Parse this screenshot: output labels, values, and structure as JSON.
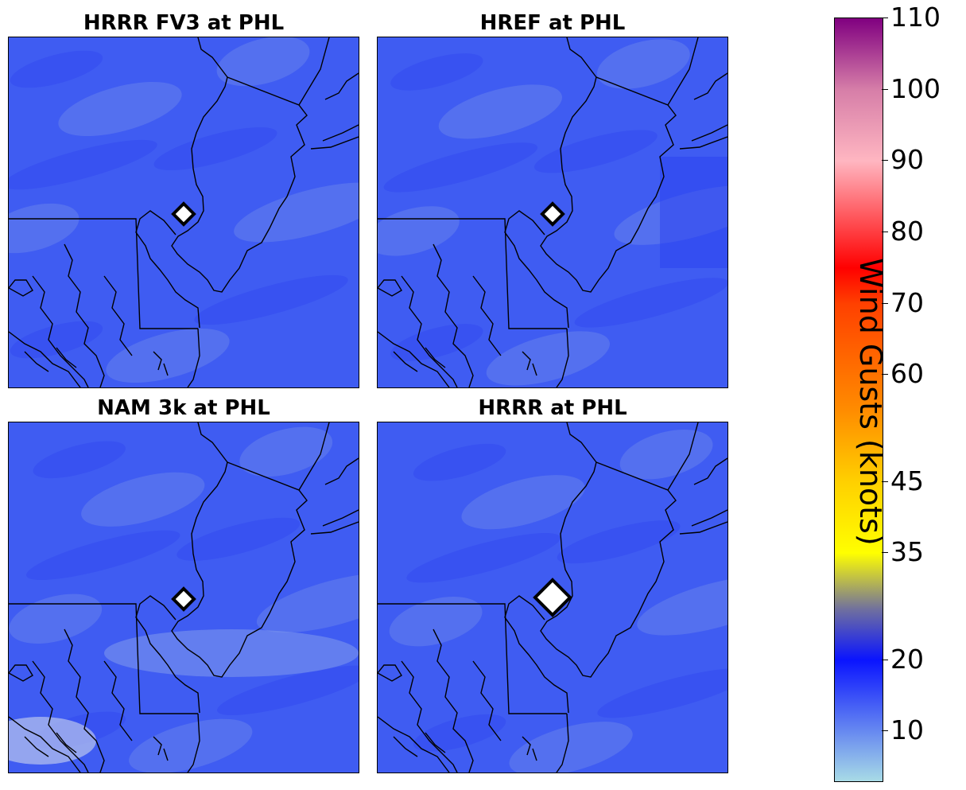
{
  "panels": [
    {
      "title": "HRRR FV3 at PHL",
      "marker": "small"
    },
    {
      "title": "HREF at PHL",
      "marker": "small"
    },
    {
      "title": "NAM 3k at PHL",
      "marker": "small"
    },
    {
      "title": "HRRR at PHL",
      "marker": "large"
    }
  ],
  "colorbar": {
    "label": "Wind Gusts (knots)",
    "ticks": [
      {
        "value": 10,
        "label": "10"
      },
      {
        "value": 20,
        "label": "20"
      },
      {
        "value": 35,
        "label": "35"
      },
      {
        "value": 45,
        "label": "45"
      },
      {
        "value": 60,
        "label": "60"
      },
      {
        "value": 70,
        "label": "70"
      },
      {
        "value": 80,
        "label": "80"
      },
      {
        "value": 90,
        "label": "90"
      },
      {
        "value": 100,
        "label": "100"
      },
      {
        "value": 110,
        "label": "110"
      }
    ],
    "colors": {
      "light_blue": "#a8dbe6",
      "blue": "#0a14ff",
      "yellow": "#ffff00",
      "orange": "#ff8c00",
      "red": "#ff0000",
      "pink": "#ffb6c1",
      "purple": "#800080"
    }
  },
  "map_colors": {
    "field": "#3f5cf2",
    "dark": "#2a3ff0",
    "light": "#7b95ec",
    "outline": "#000000",
    "marker_fill": "#ffffff"
  }
}
